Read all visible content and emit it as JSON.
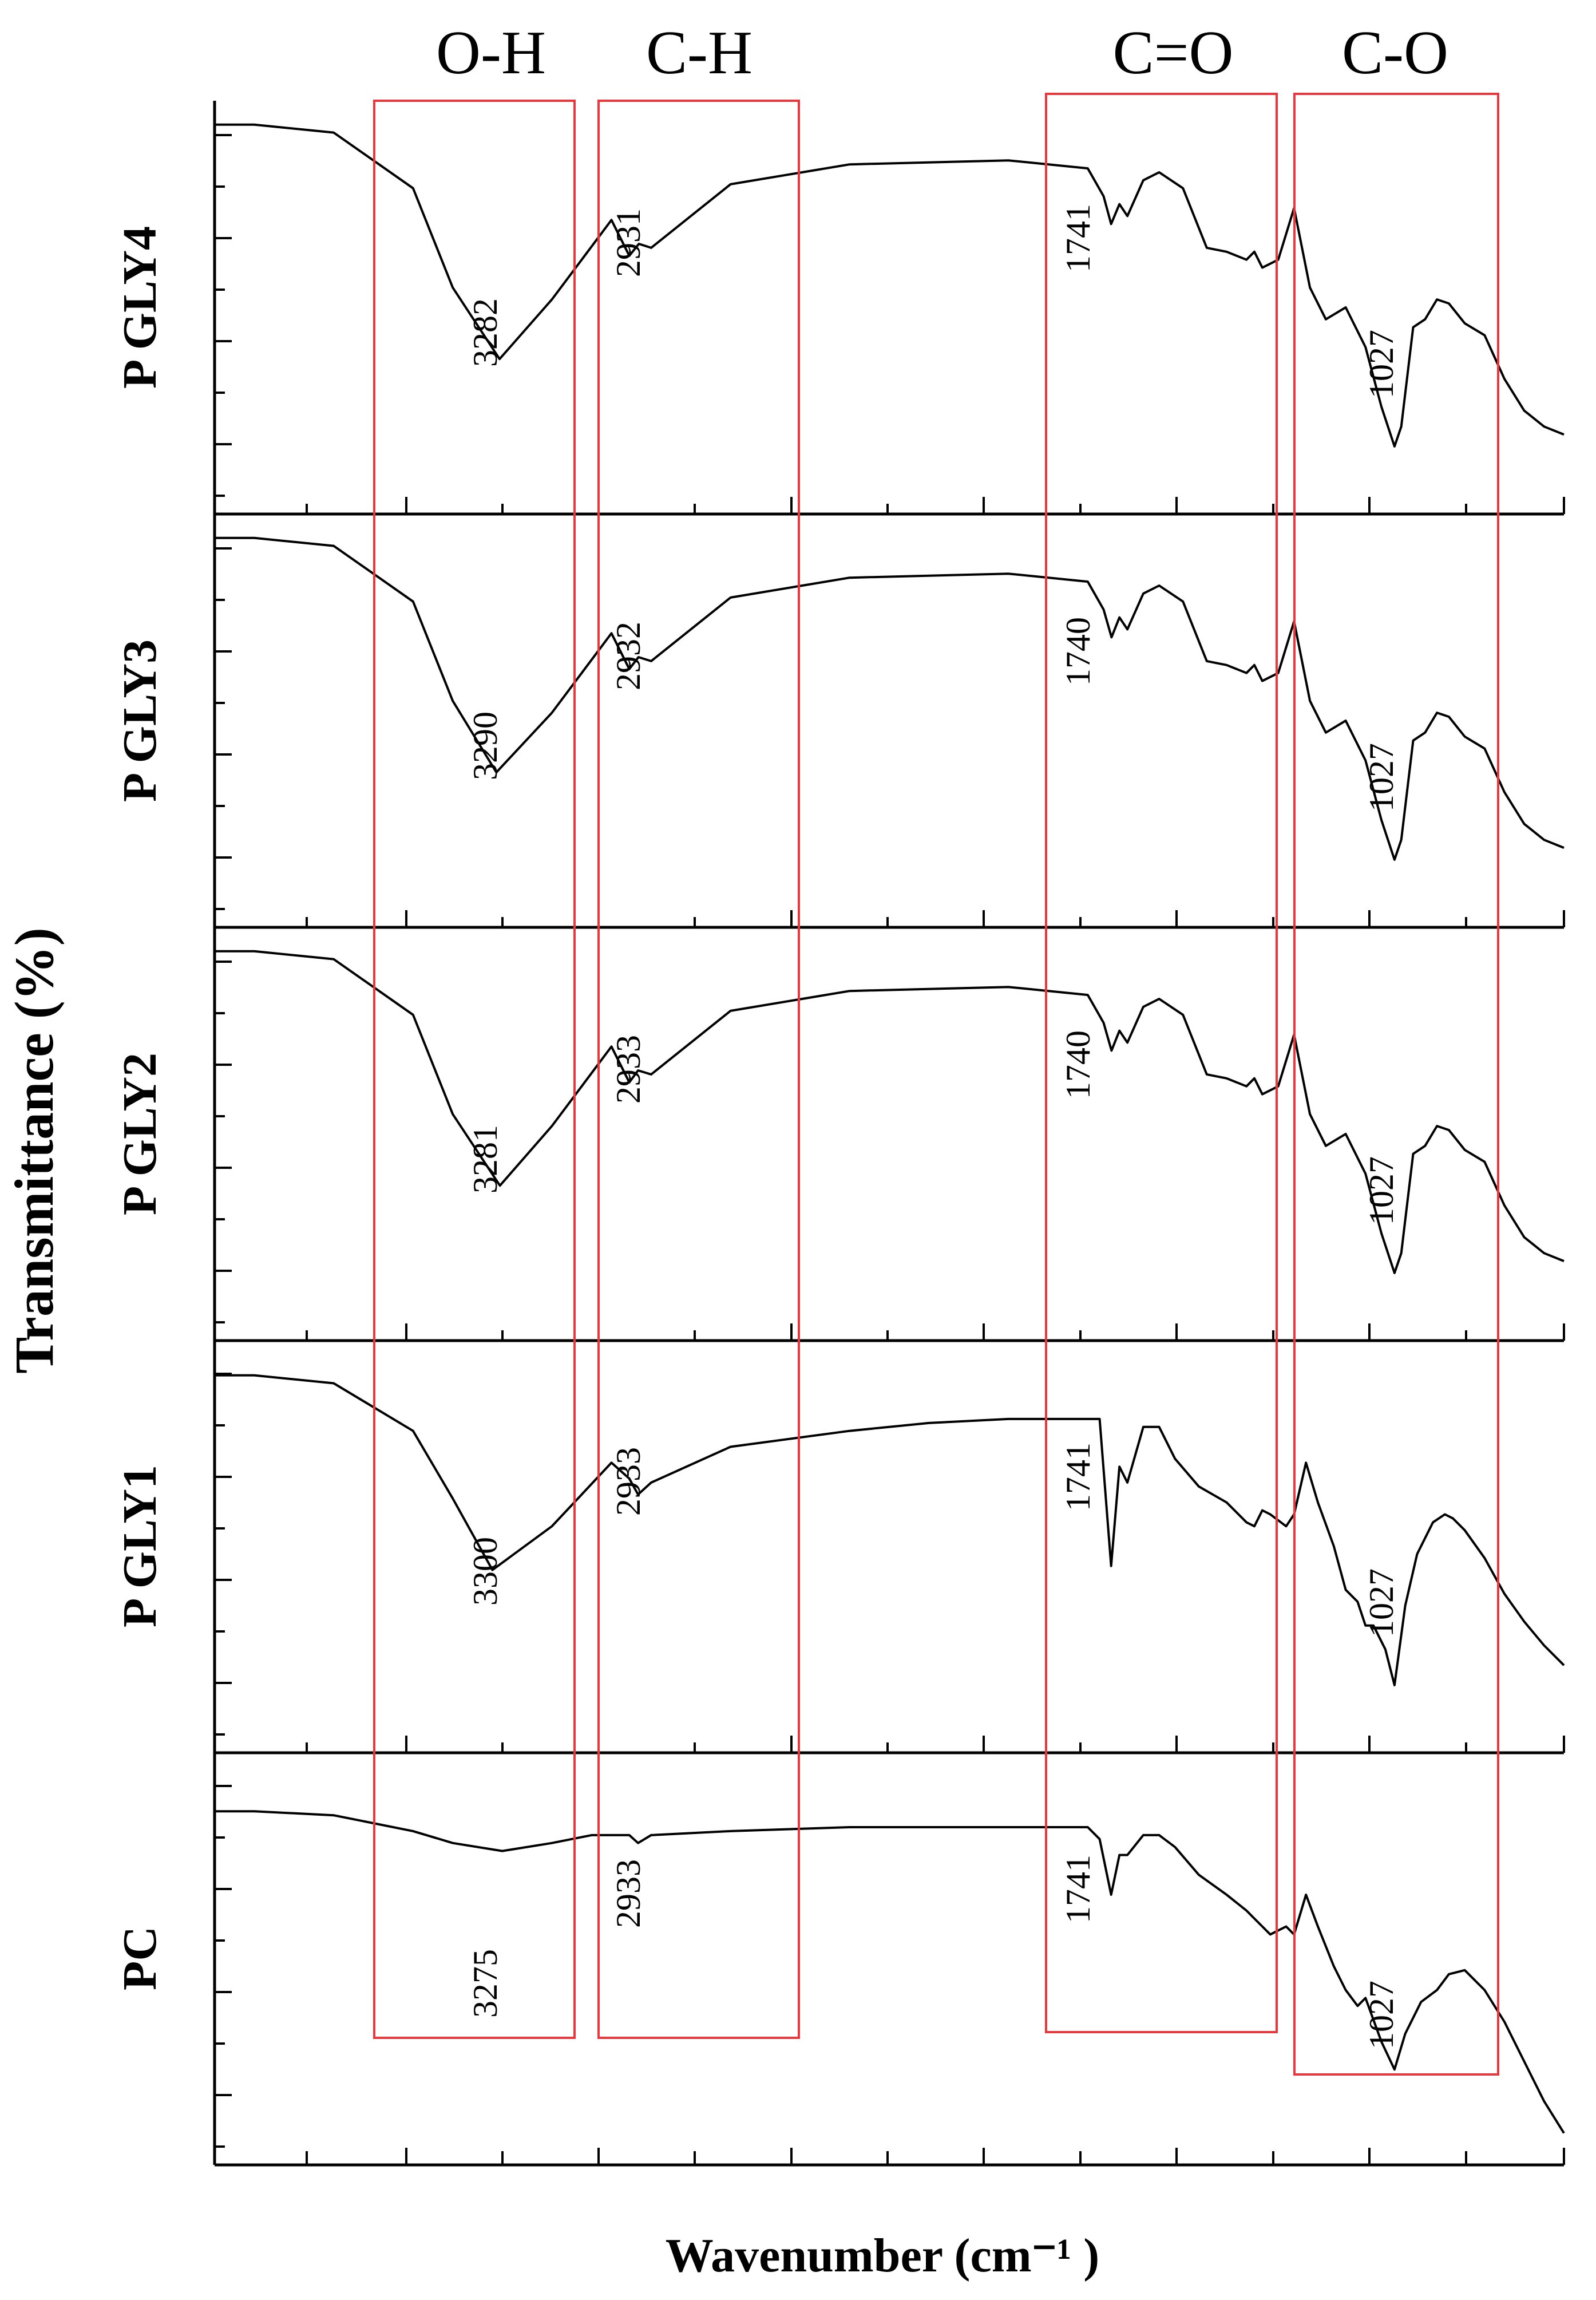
{
  "chart_data": {
    "type": "line",
    "title": "",
    "xlabel": "Wavenumber (cm⁻¹ )",
    "ylabel": "Transmittance (%)",
    "x_direction": "descending",
    "grid": false,
    "legend": "none",
    "line_color": "#000000",
    "box_color": "#e8383d",
    "regions": [
      {
        "name": "O-H"
      },
      {
        "name": "C-H"
      },
      {
        "name": "C=O"
      },
      {
        "name": "C-O"
      }
    ],
    "series": [
      {
        "name": "P GLY4",
        "peak_labels": [
          "3282",
          "2931",
          "1741",
          "1027"
        ],
        "x": [
          4000,
          3900,
          3700,
          3500,
          3400,
          3282,
          3150,
          3000,
          2955,
          2931,
          2900,
          2700,
          2400,
          2000,
          1800,
          1760,
          1741,
          1720,
          1700,
          1660,
          1620,
          1560,
          1500,
          1450,
          1400,
          1380,
          1360,
          1320,
          1280,
          1240,
          1200,
          1150,
          1100,
          1060,
          1027,
          1010,
          980,
          950,
          920,
          890,
          850,
          800,
          750,
          700,
          650,
          600
        ],
        "y": [
          96,
          96,
          94,
          80,
          55,
          37,
          52,
          72,
          63,
          66,
          65,
          81,
          86,
          87,
          85,
          78,
          71,
          76,
          73,
          82,
          84,
          80,
          65,
          64,
          62,
          64,
          60,
          62,
          75,
          55,
          47,
          50,
          40,
          25,
          15,
          20,
          45,
          47,
          52,
          51,
          46,
          43,
          32,
          24,
          20,
          18
        ]
      },
      {
        "name": "P GLY3",
        "peak_labels": [
          "3290",
          "2932",
          "1740",
          "1027"
        ],
        "x": [
          4000,
          3900,
          3700,
          3500,
          3400,
          3290,
          3150,
          3000,
          2955,
          2932,
          2900,
          2700,
          2400,
          2000,
          1800,
          1760,
          1740,
          1720,
          1700,
          1660,
          1620,
          1560,
          1500,
          1450,
          1400,
          1380,
          1360,
          1320,
          1280,
          1240,
          1200,
          1150,
          1100,
          1060,
          1027,
          1010,
          980,
          950,
          920,
          890,
          850,
          800,
          750,
          700,
          650,
          600
        ],
        "y": [
          96,
          96,
          94,
          80,
          55,
          37,
          52,
          72,
          63,
          66,
          65,
          81,
          86,
          87,
          85,
          78,
          71,
          76,
          73,
          82,
          84,
          80,
          65,
          64,
          62,
          64,
          60,
          62,
          75,
          55,
          47,
          50,
          40,
          25,
          15,
          20,
          45,
          47,
          52,
          51,
          46,
          43,
          32,
          24,
          20,
          18
        ]
      },
      {
        "name": "P GLY2",
        "peak_labels": [
          "3281",
          "2933",
          "1740",
          "1027"
        ],
        "x": [
          4000,
          3900,
          3700,
          3500,
          3400,
          3281,
          3150,
          3000,
          2955,
          2933,
          2900,
          2700,
          2400,
          2000,
          1800,
          1760,
          1740,
          1720,
          1700,
          1660,
          1620,
          1560,
          1500,
          1450,
          1400,
          1380,
          1360,
          1320,
          1280,
          1240,
          1200,
          1150,
          1100,
          1060,
          1027,
          1010,
          980,
          950,
          920,
          890,
          850,
          800,
          750,
          700,
          650,
          600
        ],
        "y": [
          96,
          96,
          94,
          80,
          55,
          37,
          52,
          72,
          63,
          66,
          65,
          81,
          86,
          87,
          85,
          78,
          71,
          76,
          73,
          82,
          84,
          80,
          65,
          64,
          62,
          64,
          60,
          62,
          75,
          55,
          47,
          50,
          40,
          25,
          15,
          20,
          45,
          47,
          52,
          51,
          46,
          43,
          32,
          24,
          20,
          18
        ]
      },
      {
        "name": "P GLY1",
        "peak_labels": [
          "3300",
          "2933",
          "1741",
          "1027"
        ],
        "x": [
          4000,
          3900,
          3700,
          3500,
          3400,
          3300,
          3150,
          3000,
          2955,
          2933,
          2900,
          2700,
          2400,
          2200,
          2000,
          1800,
          1770,
          1741,
          1720,
          1700,
          1660,
          1620,
          1580,
          1520,
          1450,
          1400,
          1380,
          1360,
          1340,
          1300,
          1280,
          1250,
          1220,
          1180,
          1150,
          1120,
          1100,
          1080,
          1050,
          1027,
          1000,
          970,
          930,
          900,
          880,
          850,
          800,
          750,
          700,
          650,
          600
        ],
        "y": [
          93,
          93,
          91,
          79,
          62,
          44,
          55,
          71,
          67,
          63,
          66,
          75,
          79,
          81,
          82,
          82,
          82,
          45,
          70,
          66,
          80,
          80,
          72,
          65,
          61,
          56,
          55,
          59,
          58,
          55,
          58,
          71,
          61,
          50,
          39,
          36,
          30,
          30,
          24,
          15,
          35,
          48,
          56,
          58,
          57,
          54,
          47,
          38,
          31,
          25,
          20
        ]
      },
      {
        "name": "PC",
        "peak_labels": [
          "3275",
          "2933",
          "1741",
          "1027"
        ],
        "x": [
          4000,
          3900,
          3700,
          3500,
          3400,
          3275,
          3150,
          3050,
          3000,
          2955,
          2933,
          2900,
          2700,
          2400,
          2000,
          1800,
          1770,
          1741,
          1720,
          1700,
          1660,
          1620,
          1580,
          1520,
          1450,
          1400,
          1380,
          1360,
          1340,
          1300,
          1280,
          1250,
          1220,
          1180,
          1150,
          1120,
          1100,
          1060,
          1027,
          1000,
          960,
          920,
          890,
          850,
          800,
          750,
          700,
          650,
          600
        ],
        "y": [
          87,
          87,
          86,
          82,
          79,
          77,
          79,
          81,
          81,
          81,
          79,
          81,
          82,
          83,
          83,
          83,
          80,
          66,
          76,
          76,
          81,
          81,
          78,
          71,
          66,
          62,
          60,
          58,
          56,
          58,
          56,
          66,
          58,
          48,
          42,
          38,
          40,
          29,
          22,
          31,
          39,
          42,
          46,
          47,
          42,
          34,
          24,
          14,
          6
        ]
      }
    ]
  }
}
